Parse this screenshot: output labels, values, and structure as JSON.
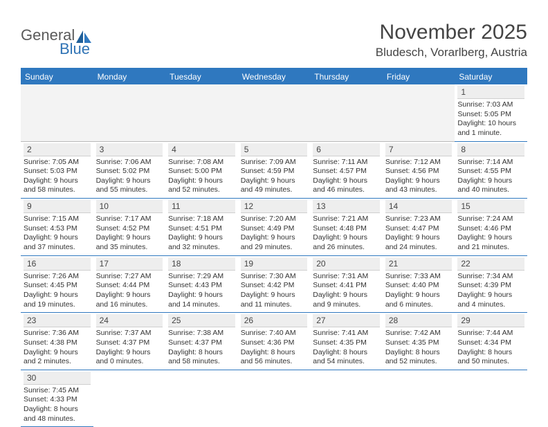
{
  "brand": {
    "general": "General",
    "blue": "Blue"
  },
  "title": "November 2025",
  "location": "Bludesch, Vorarlberg, Austria",
  "colors": {
    "header_bg": "#2f78bf",
    "header_text": "#ffffff",
    "daynum_bg": "#eeeeee",
    "border": "#2f78bf",
    "logo_blue": "#2f73b5",
    "logo_gray": "#5a5a5a"
  },
  "dayHeaders": [
    "Sunday",
    "Monday",
    "Tuesday",
    "Wednesday",
    "Thursday",
    "Friday",
    "Saturday"
  ],
  "weeks": [
    [
      null,
      null,
      null,
      null,
      null,
      null,
      {
        "n": "1",
        "sunrise": "Sunrise: 7:03 AM",
        "sunset": "Sunset: 5:05 PM",
        "daylight": "Daylight: 10 hours and 1 minute."
      }
    ],
    [
      {
        "n": "2",
        "sunrise": "Sunrise: 7:05 AM",
        "sunset": "Sunset: 5:03 PM",
        "daylight": "Daylight: 9 hours and 58 minutes."
      },
      {
        "n": "3",
        "sunrise": "Sunrise: 7:06 AM",
        "sunset": "Sunset: 5:02 PM",
        "daylight": "Daylight: 9 hours and 55 minutes."
      },
      {
        "n": "4",
        "sunrise": "Sunrise: 7:08 AM",
        "sunset": "Sunset: 5:00 PM",
        "daylight": "Daylight: 9 hours and 52 minutes."
      },
      {
        "n": "5",
        "sunrise": "Sunrise: 7:09 AM",
        "sunset": "Sunset: 4:59 PM",
        "daylight": "Daylight: 9 hours and 49 minutes."
      },
      {
        "n": "6",
        "sunrise": "Sunrise: 7:11 AM",
        "sunset": "Sunset: 4:57 PM",
        "daylight": "Daylight: 9 hours and 46 minutes."
      },
      {
        "n": "7",
        "sunrise": "Sunrise: 7:12 AM",
        "sunset": "Sunset: 4:56 PM",
        "daylight": "Daylight: 9 hours and 43 minutes."
      },
      {
        "n": "8",
        "sunrise": "Sunrise: 7:14 AM",
        "sunset": "Sunset: 4:55 PM",
        "daylight": "Daylight: 9 hours and 40 minutes."
      }
    ],
    [
      {
        "n": "9",
        "sunrise": "Sunrise: 7:15 AM",
        "sunset": "Sunset: 4:53 PM",
        "daylight": "Daylight: 9 hours and 37 minutes."
      },
      {
        "n": "10",
        "sunrise": "Sunrise: 7:17 AM",
        "sunset": "Sunset: 4:52 PM",
        "daylight": "Daylight: 9 hours and 35 minutes."
      },
      {
        "n": "11",
        "sunrise": "Sunrise: 7:18 AM",
        "sunset": "Sunset: 4:51 PM",
        "daylight": "Daylight: 9 hours and 32 minutes."
      },
      {
        "n": "12",
        "sunrise": "Sunrise: 7:20 AM",
        "sunset": "Sunset: 4:49 PM",
        "daylight": "Daylight: 9 hours and 29 minutes."
      },
      {
        "n": "13",
        "sunrise": "Sunrise: 7:21 AM",
        "sunset": "Sunset: 4:48 PM",
        "daylight": "Daylight: 9 hours and 26 minutes."
      },
      {
        "n": "14",
        "sunrise": "Sunrise: 7:23 AM",
        "sunset": "Sunset: 4:47 PM",
        "daylight": "Daylight: 9 hours and 24 minutes."
      },
      {
        "n": "15",
        "sunrise": "Sunrise: 7:24 AM",
        "sunset": "Sunset: 4:46 PM",
        "daylight": "Daylight: 9 hours and 21 minutes."
      }
    ],
    [
      {
        "n": "16",
        "sunrise": "Sunrise: 7:26 AM",
        "sunset": "Sunset: 4:45 PM",
        "daylight": "Daylight: 9 hours and 19 minutes."
      },
      {
        "n": "17",
        "sunrise": "Sunrise: 7:27 AM",
        "sunset": "Sunset: 4:44 PM",
        "daylight": "Daylight: 9 hours and 16 minutes."
      },
      {
        "n": "18",
        "sunrise": "Sunrise: 7:29 AM",
        "sunset": "Sunset: 4:43 PM",
        "daylight": "Daylight: 9 hours and 14 minutes."
      },
      {
        "n": "19",
        "sunrise": "Sunrise: 7:30 AM",
        "sunset": "Sunset: 4:42 PM",
        "daylight": "Daylight: 9 hours and 11 minutes."
      },
      {
        "n": "20",
        "sunrise": "Sunrise: 7:31 AM",
        "sunset": "Sunset: 4:41 PM",
        "daylight": "Daylight: 9 hours and 9 minutes."
      },
      {
        "n": "21",
        "sunrise": "Sunrise: 7:33 AM",
        "sunset": "Sunset: 4:40 PM",
        "daylight": "Daylight: 9 hours and 6 minutes."
      },
      {
        "n": "22",
        "sunrise": "Sunrise: 7:34 AM",
        "sunset": "Sunset: 4:39 PM",
        "daylight": "Daylight: 9 hours and 4 minutes."
      }
    ],
    [
      {
        "n": "23",
        "sunrise": "Sunrise: 7:36 AM",
        "sunset": "Sunset: 4:38 PM",
        "daylight": "Daylight: 9 hours and 2 minutes."
      },
      {
        "n": "24",
        "sunrise": "Sunrise: 7:37 AM",
        "sunset": "Sunset: 4:37 PM",
        "daylight": "Daylight: 9 hours and 0 minutes."
      },
      {
        "n": "25",
        "sunrise": "Sunrise: 7:38 AM",
        "sunset": "Sunset: 4:37 PM",
        "daylight": "Daylight: 8 hours and 58 minutes."
      },
      {
        "n": "26",
        "sunrise": "Sunrise: 7:40 AM",
        "sunset": "Sunset: 4:36 PM",
        "daylight": "Daylight: 8 hours and 56 minutes."
      },
      {
        "n": "27",
        "sunrise": "Sunrise: 7:41 AM",
        "sunset": "Sunset: 4:35 PM",
        "daylight": "Daylight: 8 hours and 54 minutes."
      },
      {
        "n": "28",
        "sunrise": "Sunrise: 7:42 AM",
        "sunset": "Sunset: 4:35 PM",
        "daylight": "Daylight: 8 hours and 52 minutes."
      },
      {
        "n": "29",
        "sunrise": "Sunrise: 7:44 AM",
        "sunset": "Sunset: 4:34 PM",
        "daylight": "Daylight: 8 hours and 50 minutes."
      }
    ],
    [
      {
        "n": "30",
        "sunrise": "Sunrise: 7:45 AM",
        "sunset": "Sunset: 4:33 PM",
        "daylight": "Daylight: 8 hours and 48 minutes."
      },
      null,
      null,
      null,
      null,
      null,
      null
    ]
  ]
}
